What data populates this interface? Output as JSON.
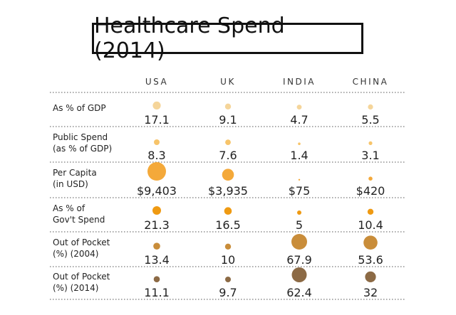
{
  "title": "Healthcare Spend (2014)",
  "chart_data": {
    "type": "table",
    "title": "Healthcare Spend (2014)",
    "columns": [
      "USA",
      "UK",
      "INDIA",
      "CHINA"
    ],
    "rows": [
      {
        "label": [
          "As % of GDP"
        ],
        "values": [
          17.1,
          9.1,
          4.7,
          5.5
        ],
        "display": [
          "17.1",
          "9.1",
          "4.7",
          "5.5"
        ],
        "color": "#f5d59a",
        "bubble": [
          5.6,
          4.2,
          3.4,
          3.6
        ]
      },
      {
        "label": [
          "Public Spend",
          "(as % of GDP)"
        ],
        "values": [
          8.3,
          7.6,
          1.4,
          3.1
        ],
        "display": [
          "8.3",
          "7.6",
          "1.4",
          "3.1"
        ],
        "color": "#f7c46a",
        "bubble": [
          4.0,
          3.9,
          1.8,
          2.6
        ]
      },
      {
        "label": [
          "Per Capita",
          "(in USD)"
        ],
        "values": [
          9403,
          3935,
          75,
          420
        ],
        "display": [
          "$9,403",
          "$3,935",
          "$75",
          "$420"
        ],
        "color": "#f4a93a",
        "bubble": [
          13.0,
          8.3,
          1.2,
          2.8
        ]
      },
      {
        "label": [
          "As % of",
          "Gov't Spend"
        ],
        "values": [
          21.3,
          16.5,
          5,
          10.4
        ],
        "display": [
          "21.3",
          "16.5",
          "5",
          "10.4"
        ],
        "color": "#ef9a12",
        "bubble": [
          6.0,
          5.3,
          3.0,
          4.2
        ]
      },
      {
        "label": [
          "Out of Pocket",
          "(%) (2004)"
        ],
        "values": [
          13.4,
          10,
          67.9,
          53.6
        ],
        "display": [
          "13.4",
          "10",
          "67.9",
          "53.6"
        ],
        "color": "#c98d3a",
        "bubble": [
          4.8,
          4.2,
          11.0,
          9.8
        ]
      },
      {
        "label": [
          "Out of Pocket",
          "(%) (2014)"
        ],
        "values": [
          11.1,
          9.7,
          62.4,
          32
        ],
        "display": [
          "11.1",
          "9.7",
          "62.4",
          "32"
        ],
        "color": "#8c6a45",
        "bubble": [
          4.3,
          4.0,
          10.5,
          7.6
        ]
      }
    ]
  }
}
